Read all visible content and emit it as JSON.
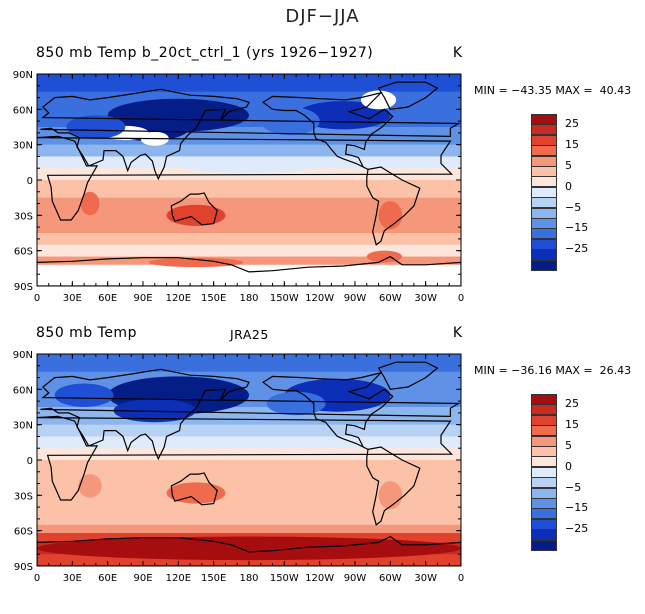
{
  "figure_title": "DJF−JJA",
  "panels": [
    {
      "title_left": "850 mb Temp",
      "title_center": "b_20ct_ctrl_1 (yrs 1926−1927)",
      "title_center_full": "850 mb Temp b_20ct_ctrl_1 (yrs 1926−1927)",
      "units": "K",
      "minmax": "MIN = −43.35 MAX =  40.43",
      "min": -43.35,
      "max": 40.43
    },
    {
      "title_left": "850 mb Temp",
      "title_center": "JRA25",
      "units": "K",
      "minmax": "MIN = −36.16 MAX =  26.43",
      "min": -36.16,
      "max": 26.43
    }
  ],
  "lat_labels": [
    "90N",
    "60N",
    "30N",
    "0",
    "30S",
    "60S",
    "90S"
  ],
  "lon_labels": [
    "0",
    "30E",
    "60E",
    "90E",
    "120E",
    "150E",
    "180",
    "150W",
    "120W",
    "90W",
    "60W",
    "30W",
    "0"
  ],
  "colorbar": {
    "labels": [
      "25",
      "15",
      "5",
      "0",
      "−5",
      "−15",
      "−25"
    ],
    "colors": [
      "#a50d0f",
      "#c92a22",
      "#e1422e",
      "#ee6b4e",
      "#f5977a",
      "#fbc2a8",
      "#fde7dc",
      "#dfeafa",
      "#b8d2f4",
      "#8eb6ee",
      "#5f92e6",
      "#3a6fde",
      "#1f4fd4",
      "#0d2fb8",
      "#051d86"
    ]
  }
}
